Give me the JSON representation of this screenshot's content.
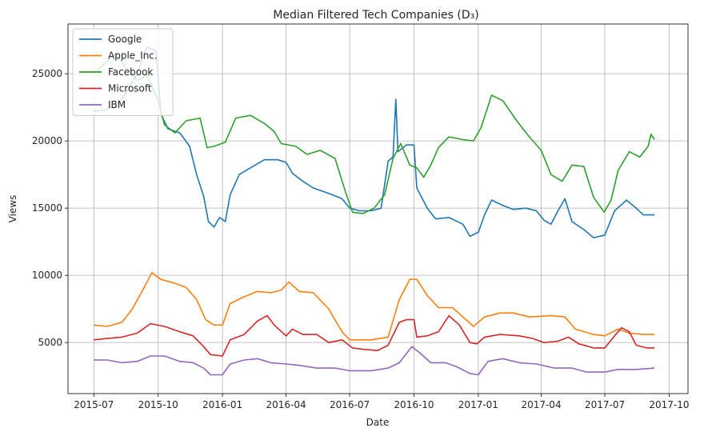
{
  "chart_data": {
    "type": "line",
    "title": "Median Filtered Tech Companies (D₃)",
    "xlabel": "Date",
    "ylabel": "Views",
    "xlim": [
      "2015-05-25",
      "2017-10-28"
    ],
    "ylim": [
      1200,
      28700
    ],
    "grid": true,
    "legend_position": "top-left",
    "x_ticks": [
      "2015-07-01",
      "2015-10-01",
      "2016-01-01",
      "2016-04-01",
      "2016-07-01",
      "2016-10-01",
      "2017-01-01",
      "2017-04-01",
      "2017-07-01",
      "2017-10-01"
    ],
    "x_tick_labels": [
      "2015-07",
      "2015-10",
      "2016-01",
      "2016-04",
      "2016-07",
      "2016-10",
      "2017-01",
      "2017-04",
      "2017-07",
      "2017-10"
    ],
    "y_ticks": [
      5000,
      10000,
      15000,
      20000,
      25000
    ],
    "y_tick_labels": [
      "5000",
      "10000",
      "15000",
      "20000",
      "25000"
    ],
    "series": [
      {
        "name": "Google",
        "color": "#1f77b4",
        "points": [
          [
            "2015-07-01",
            22200
          ],
          [
            "2015-07-15",
            22300
          ],
          [
            "2015-08-01",
            22600
          ],
          [
            "2015-08-15",
            23500
          ],
          [
            "2015-09-01",
            25000
          ],
          [
            "2015-09-15",
            27000
          ],
          [
            "2015-09-28",
            26700
          ],
          [
            "2015-10-05",
            22000
          ],
          [
            "2015-10-15",
            20900
          ],
          [
            "2015-11-01",
            20600
          ],
          [
            "2015-11-15",
            19600
          ],
          [
            "2015-11-25",
            17500
          ],
          [
            "2015-12-05",
            15900
          ],
          [
            "2015-12-12",
            14000
          ],
          [
            "2015-12-20",
            13600
          ],
          [
            "2015-12-28",
            14300
          ],
          [
            "2016-01-05",
            14000
          ],
          [
            "2016-01-12",
            16000
          ],
          [
            "2016-01-25",
            17500
          ],
          [
            "2016-02-10",
            18000
          ],
          [
            "2016-03-01",
            18600
          ],
          [
            "2016-03-20",
            18600
          ],
          [
            "2016-04-01",
            18400
          ],
          [
            "2016-04-10",
            17600
          ],
          [
            "2016-04-25",
            17000
          ],
          [
            "2016-05-10",
            16500
          ],
          [
            "2016-06-01",
            16100
          ],
          [
            "2016-06-20",
            15700
          ],
          [
            "2016-07-01",
            15000
          ],
          [
            "2016-07-15",
            14800
          ],
          [
            "2016-08-01",
            14800
          ],
          [
            "2016-08-15",
            15000
          ],
          [
            "2016-08-25",
            18500
          ],
          [
            "2016-09-01",
            18800
          ],
          [
            "2016-09-05",
            23100
          ],
          [
            "2016-09-08",
            19200
          ],
          [
            "2016-09-20",
            19700
          ],
          [
            "2016-10-01",
            19700
          ],
          [
            "2016-10-05",
            16500
          ],
          [
            "2016-10-20",
            15000
          ],
          [
            "2016-11-01",
            14200
          ],
          [
            "2016-11-20",
            14300
          ],
          [
            "2016-12-10",
            13800
          ],
          [
            "2016-12-20",
            12900
          ],
          [
            "2017-01-01",
            13200
          ],
          [
            "2017-01-10",
            14500
          ],
          [
            "2017-01-20",
            15600
          ],
          [
            "2017-02-05",
            15200
          ],
          [
            "2017-02-20",
            14900
          ],
          [
            "2017-03-10",
            15000
          ],
          [
            "2017-03-25",
            14800
          ],
          [
            "2017-04-05",
            14100
          ],
          [
            "2017-04-15",
            13800
          ],
          [
            "2017-04-25",
            14800
          ],
          [
            "2017-05-05",
            15700
          ],
          [
            "2017-05-15",
            14000
          ],
          [
            "2017-06-01",
            13400
          ],
          [
            "2017-06-15",
            12800
          ],
          [
            "2017-07-01",
            13000
          ],
          [
            "2017-07-15",
            14800
          ],
          [
            "2017-08-01",
            15600
          ],
          [
            "2017-08-15",
            15000
          ],
          [
            "2017-08-25",
            14500
          ],
          [
            "2017-09-10",
            14500
          ]
        ]
      },
      {
        "name": "Apple_Inc.",
        "color": "#ff7f0e",
        "points": [
          [
            "2015-07-01",
            6300
          ],
          [
            "2015-07-20",
            6200
          ],
          [
            "2015-08-10",
            6500
          ],
          [
            "2015-08-25",
            7500
          ],
          [
            "2015-09-10",
            9000
          ],
          [
            "2015-09-22",
            10200
          ],
          [
            "2015-10-05",
            9700
          ],
          [
            "2015-10-25",
            9400
          ],
          [
            "2015-11-10",
            9100
          ],
          [
            "2015-11-25",
            8200
          ],
          [
            "2015-12-08",
            6700
          ],
          [
            "2015-12-20",
            6300
          ],
          [
            "2016-01-01",
            6300
          ],
          [
            "2016-01-12",
            7900
          ],
          [
            "2016-02-01",
            8400
          ],
          [
            "2016-02-20",
            8800
          ],
          [
            "2016-03-10",
            8700
          ],
          [
            "2016-03-25",
            8900
          ],
          [
            "2016-04-05",
            9500
          ],
          [
            "2016-04-20",
            8800
          ],
          [
            "2016-05-10",
            8700
          ],
          [
            "2016-06-01",
            7500
          ],
          [
            "2016-06-20",
            5800
          ],
          [
            "2016-07-01",
            5200
          ],
          [
            "2016-08-01",
            5200
          ],
          [
            "2016-08-25",
            5400
          ],
          [
            "2016-09-10",
            8200
          ],
          [
            "2016-09-25",
            9700
          ],
          [
            "2016-10-05",
            9700
          ],
          [
            "2016-10-20",
            8500
          ],
          [
            "2016-11-05",
            7600
          ],
          [
            "2016-11-25",
            7600
          ],
          [
            "2016-12-10",
            6900
          ],
          [
            "2016-12-25",
            6200
          ],
          [
            "2017-01-10",
            6900
          ],
          [
            "2017-02-01",
            7200
          ],
          [
            "2017-02-20",
            7200
          ],
          [
            "2017-03-15",
            6900
          ],
          [
            "2017-04-15",
            7000
          ],
          [
            "2017-05-05",
            6900
          ],
          [
            "2017-05-20",
            6000
          ],
          [
            "2017-06-15",
            5600
          ],
          [
            "2017-07-01",
            5500
          ],
          [
            "2017-07-20",
            6000
          ],
          [
            "2017-08-05",
            5700
          ],
          [
            "2017-08-25",
            5600
          ],
          [
            "2017-09-10",
            5600
          ]
        ]
      },
      {
        "name": "Facebook",
        "color": "#2ca02c",
        "points": [
          [
            "2015-07-01",
            25000
          ],
          [
            "2015-07-15",
            25700
          ],
          [
            "2015-08-01",
            26500
          ],
          [
            "2015-08-15",
            25500
          ],
          [
            "2015-09-01",
            24500
          ],
          [
            "2015-09-15",
            24900
          ],
          [
            "2015-10-01",
            23000
          ],
          [
            "2015-10-10",
            21200
          ],
          [
            "2015-10-25",
            20600
          ],
          [
            "2015-11-10",
            21500
          ],
          [
            "2015-11-30",
            21700
          ],
          [
            "2015-12-10",
            19500
          ],
          [
            "2015-12-20",
            19600
          ],
          [
            "2016-01-05",
            19900
          ],
          [
            "2016-01-20",
            21700
          ],
          [
            "2016-02-10",
            21900
          ],
          [
            "2016-03-01",
            21300
          ],
          [
            "2016-03-15",
            20700
          ],
          [
            "2016-03-25",
            19800
          ],
          [
            "2016-04-15",
            19600
          ],
          [
            "2016-05-01",
            19000
          ],
          [
            "2016-05-20",
            19300
          ],
          [
            "2016-06-10",
            18700
          ],
          [
            "2016-06-25",
            16200
          ],
          [
            "2016-07-05",
            14700
          ],
          [
            "2016-07-20",
            14600
          ],
          [
            "2016-08-05",
            15000
          ],
          [
            "2016-08-20",
            16000
          ],
          [
            "2016-09-01",
            18700
          ],
          [
            "2016-09-12",
            19800
          ],
          [
            "2016-09-25",
            18200
          ],
          [
            "2016-10-05",
            18000
          ],
          [
            "2016-10-15",
            17300
          ],
          [
            "2016-10-25",
            18200
          ],
          [
            "2016-11-05",
            19500
          ],
          [
            "2016-11-20",
            20300
          ],
          [
            "2016-12-10",
            20100
          ],
          [
            "2016-12-25",
            20000
          ],
          [
            "2017-01-05",
            21000
          ],
          [
            "2017-01-20",
            23400
          ],
          [
            "2017-02-05",
            23000
          ],
          [
            "2017-02-25",
            21500
          ],
          [
            "2017-03-15",
            20300
          ],
          [
            "2017-04-01",
            19300
          ],
          [
            "2017-04-15",
            17500
          ],
          [
            "2017-05-01",
            17000
          ],
          [
            "2017-05-15",
            18200
          ],
          [
            "2017-06-01",
            18100
          ],
          [
            "2017-06-15",
            15800
          ],
          [
            "2017-06-30",
            14700
          ],
          [
            "2017-07-10",
            15600
          ],
          [
            "2017-07-20",
            17800
          ],
          [
            "2017-08-05",
            19200
          ],
          [
            "2017-08-20",
            18800
          ],
          [
            "2017-09-01",
            19600
          ],
          [
            "2017-09-05",
            20500
          ],
          [
            "2017-09-10",
            20100
          ]
        ]
      },
      {
        "name": "Microsoft",
        "color": "#d62728",
        "points": [
          [
            "2015-07-01",
            5200
          ],
          [
            "2015-07-20",
            5300
          ],
          [
            "2015-08-10",
            5400
          ],
          [
            "2015-09-01",
            5700
          ],
          [
            "2015-09-20",
            6400
          ],
          [
            "2015-10-10",
            6200
          ],
          [
            "2015-11-01",
            5800
          ],
          [
            "2015-11-20",
            5500
          ],
          [
            "2015-12-05",
            4700
          ],
          [
            "2015-12-15",
            4100
          ],
          [
            "2016-01-01",
            4000
          ],
          [
            "2016-01-12",
            5200
          ],
          [
            "2016-02-01",
            5600
          ],
          [
            "2016-02-20",
            6600
          ],
          [
            "2016-03-05",
            7000
          ],
          [
            "2016-03-15",
            6300
          ],
          [
            "2016-04-01",
            5500
          ],
          [
            "2016-04-10",
            6000
          ],
          [
            "2016-04-25",
            5600
          ],
          [
            "2016-05-15",
            5600
          ],
          [
            "2016-06-01",
            5000
          ],
          [
            "2016-06-20",
            5200
          ],
          [
            "2016-07-05",
            4600
          ],
          [
            "2016-07-20",
            4500
          ],
          [
            "2016-08-10",
            4400
          ],
          [
            "2016-08-25",
            4800
          ],
          [
            "2016-09-10",
            6500
          ],
          [
            "2016-09-20",
            6700
          ],
          [
            "2016-10-01",
            6700
          ],
          [
            "2016-10-05",
            5400
          ],
          [
            "2016-10-20",
            5500
          ],
          [
            "2016-11-05",
            5800
          ],
          [
            "2016-11-20",
            7000
          ],
          [
            "2016-12-05",
            6300
          ],
          [
            "2016-12-20",
            5000
          ],
          [
            "2016-12-30",
            4900
          ],
          [
            "2017-01-10",
            5400
          ],
          [
            "2017-02-01",
            5600
          ],
          [
            "2017-03-01",
            5500
          ],
          [
            "2017-03-20",
            5300
          ],
          [
            "2017-04-05",
            5000
          ],
          [
            "2017-04-25",
            5100
          ],
          [
            "2017-05-10",
            5400
          ],
          [
            "2017-05-25",
            4900
          ],
          [
            "2017-06-15",
            4600
          ],
          [
            "2017-07-01",
            4600
          ],
          [
            "2017-07-15",
            5500
          ],
          [
            "2017-07-25",
            6100
          ],
          [
            "2017-08-05",
            5800
          ],
          [
            "2017-08-15",
            4800
          ],
          [
            "2017-08-30",
            4600
          ],
          [
            "2017-09-10",
            4600
          ]
        ]
      },
      {
        "name": "IBM",
        "color": "#9467bd",
        "points": [
          [
            "2015-07-01",
            3700
          ],
          [
            "2015-07-20",
            3700
          ],
          [
            "2015-08-10",
            3500
          ],
          [
            "2015-09-01",
            3600
          ],
          [
            "2015-09-20",
            4000
          ],
          [
            "2015-10-10",
            4000
          ],
          [
            "2015-11-01",
            3600
          ],
          [
            "2015-11-20",
            3500
          ],
          [
            "2015-12-05",
            3100
          ],
          [
            "2015-12-15",
            2600
          ],
          [
            "2016-01-01",
            2600
          ],
          [
            "2016-01-12",
            3400
          ],
          [
            "2016-02-01",
            3700
          ],
          [
            "2016-02-20",
            3800
          ],
          [
            "2016-03-10",
            3500
          ],
          [
            "2016-04-01",
            3400
          ],
          [
            "2016-04-20",
            3300
          ],
          [
            "2016-05-15",
            3100
          ],
          [
            "2016-06-10",
            3100
          ],
          [
            "2016-07-01",
            2900
          ],
          [
            "2016-08-01",
            2900
          ],
          [
            "2016-08-25",
            3100
          ],
          [
            "2016-09-10",
            3500
          ],
          [
            "2016-09-28",
            4700
          ],
          [
            "2016-10-10",
            4200
          ],
          [
            "2016-10-25",
            3500
          ],
          [
            "2016-11-15",
            3500
          ],
          [
            "2016-12-01",
            3200
          ],
          [
            "2016-12-20",
            2700
          ],
          [
            "2017-01-01",
            2600
          ],
          [
            "2017-01-15",
            3600
          ],
          [
            "2017-02-05",
            3800
          ],
          [
            "2017-03-01",
            3500
          ],
          [
            "2017-03-25",
            3400
          ],
          [
            "2017-04-20",
            3100
          ],
          [
            "2017-05-15",
            3100
          ],
          [
            "2017-06-05",
            2800
          ],
          [
            "2017-07-01",
            2800
          ],
          [
            "2017-07-20",
            3000
          ],
          [
            "2017-08-15",
            3000
          ],
          [
            "2017-09-10",
            3100
          ]
        ]
      }
    ]
  }
}
